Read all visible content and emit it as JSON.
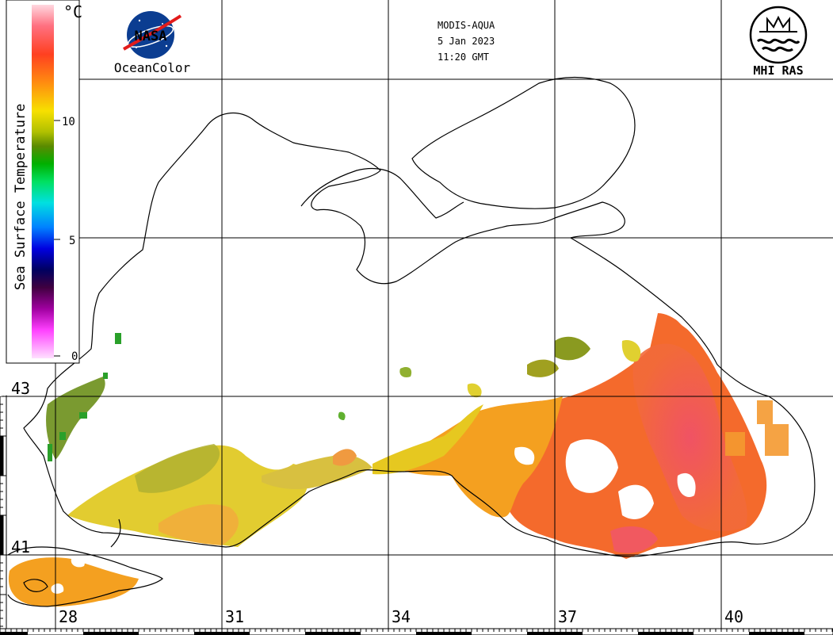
{
  "header": {
    "line1": "MODIS-AQUA",
    "line2": "5 Jan 2023",
    "line3": "11:20 GMT"
  },
  "nasa_logo": {
    "text": "NASA",
    "caption": "OceanColor",
    "icon": "nasa-meatball-logo"
  },
  "mhi_logo": {
    "caption": "MHI RAS",
    "icon": "mhi-ras-wave-emblem"
  },
  "legend": {
    "title": "Sea Surface Temperature",
    "unit": "°C",
    "tick_labels": [
      "10",
      "5",
      "0"
    ],
    "range": [
      0,
      15
    ]
  },
  "map": {
    "latitude_labels": [
      "43",
      "41"
    ],
    "longitude_labels": [
      "28",
      "31",
      "34",
      "37",
      "40"
    ],
    "grid": true,
    "colors": {
      "water_warm": "#f25a3a",
      "water_mid": "#f29a1a",
      "water_cool": "#d8c81a",
      "water_cold": "#6a9a2a",
      "land": "#ffffff",
      "coastline": "#000000"
    }
  }
}
